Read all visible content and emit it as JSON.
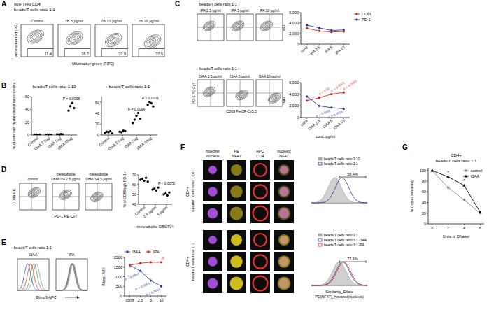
{
  "panel_labels": [
    "A",
    "B",
    "C",
    "D",
    "E",
    "F",
    "G"
  ],
  "panel_a": {
    "header": [
      "non-Treg CD4",
      "beads/T cells ratio 1:1"
    ],
    "y_label": "Mitotracker red (PE)",
    "x_label": "Mitotracker green (FITC)",
    "plots": [
      {
        "title": "Control",
        "value": 11.4
      },
      {
        "title": "7B 5 µg/ml",
        "value": 16.2
      },
      {
        "title": "7B 10 µg/ml",
        "value": 21.8
      },
      {
        "title": "7B 20 µg/ml",
        "value": 37.6
      }
    ]
  },
  "panel_c": {
    "rows": [
      {
        "header": "beads/T cells ratio 1:1",
        "plots": [
          "IPA 2.5 µg/ml",
          "IPA 5 µg/ml",
          "IPA 10 µg/ml"
        ]
      },
      {
        "header": "beads/T cells ratio 1:1",
        "plots": [
          "I3AA 2.5 µg/ml",
          "I3AA 5 µg/ml",
          "I3AA 10 µg/ml"
        ]
      }
    ],
    "y_label": "PD-1 PE-Cy7",
    "x_label": "CD69 PerCP-Cy5.5"
  },
  "panel_d": {
    "plots": [
      [
        "control"
      ],
      [
        "metetabolite",
        "D8M7V4 2.5 µg/ml"
      ],
      [
        "metetabolite",
        "D8M7V4 5 µg/ml"
      ]
    ],
    "y_label": "CD69 PE",
    "x_label": "PD-1 PE-Cy7"
  },
  "panel_e": {
    "header": "beads/T cells ratio 1:1",
    "plots": [
      "I3AA",
      "IPA"
    ],
    "x_label": "Blimp1 APC"
  },
  "panel_f": {
    "row_labels": [
      [
        "CD4+",
        "beads/T cells ratio 1:10"
      ],
      [
        "CD4+",
        "beads/T cells ratio 1:1"
      ]
    ],
    "columns": [
      [
        "hoechst",
        "nucleus"
      ],
      [
        "PE",
        "NFAT"
      ],
      [
        "APC",
        "CD4"
      ],
      [
        "nuclear/",
        "NFAT"
      ]
    ],
    "histograms": [
      {
        "legend": [
          "beads/T cells ratio 1:10",
          "beads/T cells ratio 1:1"
        ],
        "value_label": "58.4%"
      },
      {
        "legend": [
          "beads/T cells ratio 1:1",
          "beads/T cells ratio 1:1 I3AA",
          "beads/T cells ratio 1:1 IPA"
        ],
        "value_label": "77.6%"
      }
    ],
    "x_label": [
      "Similarity_Dilate",
      "PE(NFAT)_hoechst(nucleus)"
    ]
  },
  "chart_data": [
    {
      "type": "dot",
      "title": "beads/T cells ratio 1:10",
      "y_label": "% of cells with dysfunctional mitochondria",
      "categories": [
        "Control",
        "I3AA 2.5ug",
        "I3AA 5ug",
        "I3AA 10ug"
      ],
      "values": [
        [
          0.5,
          0.8,
          0.3,
          0.6
        ],
        [
          0.4,
          0.9,
          0.6,
          0.5
        ],
        [
          1.2,
          0.8,
          1.5,
          0.9
        ],
        [
          38,
          45,
          50,
          42
        ]
      ],
      "color": "#000000",
      "marker": "circle",
      "ylim": [
        0,
        60
      ],
      "yticks": [
        0,
        20,
        40,
        60
      ],
      "annotations": [
        {
          "text": "P = 0.0098",
          "category": "I3AA 10ug"
        }
      ]
    },
    {
      "type": "dot",
      "title": "beads/T cells ratio 1:1",
      "categories": [
        "Control",
        "I3AA 2.5ug",
        "I3AA 5ug",
        "I3AA 10ug"
      ],
      "values": [
        [
          4,
          6,
          5,
          7,
          3
        ],
        [
          6,
          5,
          8,
          7
        ],
        [
          22,
          28,
          35,
          40,
          30
        ],
        [
          55,
          60,
          58,
          52
        ]
      ],
      "color": "#000000",
      "marker": "circle",
      "ylim": [
        0,
        70
      ],
      "yticks": [
        0,
        20,
        40,
        60
      ],
      "annotations": [
        {
          "text": "P = 0.0094",
          "category": "I3AA 5ug"
        },
        {
          "text": "P < 0.0001",
          "category": "I3AA 10ug"
        }
      ]
    },
    {
      "type": "line",
      "y_label": "MFI",
      "categories": [
        "contr",
        "IPA 2.5",
        "IPA 5",
        "IPA 10"
      ],
      "ylim": [
        0,
        6000
      ],
      "yticks": [
        0,
        {
          "value": 2000,
          "label": "2,000"
        },
        {
          "value": 4000,
          "label": "4,000"
        },
        {
          "value": 6000,
          "label": "6,000"
        }
      ],
      "legend": "right",
      "series": [
        {
          "name": "CD69",
          "color": "#d62728",
          "marker": "circle",
          "values": [
            3000,
            2500,
            2300,
            2400
          ]
        },
        {
          "name": "PD-1",
          "color": "#2c3e9e",
          "marker": "circle",
          "values": [
            3600,
            3100,
            2600,
            2700
          ]
        }
      ]
    },
    {
      "type": "line",
      "y_label": "MFI",
      "x_label": "conc. µg/ml",
      "categories": [
        "contr",
        "I3AA 2.5",
        "I3AA 5",
        "I3AA 10"
      ],
      "ylim": [
        0,
        6000
      ],
      "yticks": [
        0,
        {
          "value": 2000,
          "label": "2,000"
        },
        {
          "value": 4000,
          "label": "4,000"
        },
        {
          "value": 6000,
          "label": "6,000"
        }
      ],
      "series": [
        {
          "name": "CD69",
          "color": "#d62728",
          "marker": "circle",
          "values": [
            2900,
            3400,
            4000,
            4300
          ]
        },
        {
          "name": "PD-1",
          "color": "#2c3e9e",
          "marker": "circle",
          "values": [
            3600,
            2000,
            1700,
            1500
          ]
        }
      ],
      "annotations": [
        {
          "text": "P = 0.01",
          "category": "I3AA 2.5",
          "series": 0
        },
        {
          "text": "P < 0.0001",
          "category": "I3AA 5",
          "series": 0
        },
        {
          "text": "P < 0.0001",
          "category": "I3AA 10",
          "series": 0
        },
        {
          "text": "P = 0.0003",
          "category": "I3AA 5",
          "series": 1
        },
        {
          "text": "P = 0.0001",
          "category": "I3AA 10",
          "series": 1
        }
      ]
    },
    {
      "type": "dot",
      "y_label": "% of CD69high PD-1+",
      "x_label": "metetabolite D8M7V4",
      "categories": [
        "Control",
        "2.5 µg/ml",
        "5 µg/ml"
      ],
      "values": [
        [
          65,
          66,
          64,
          67,
          63
        ],
        [
          55,
          56,
          54,
          57
        ],
        [
          50,
          51,
          49,
          52
        ]
      ],
      "color": "#000000",
      "marker": "circle",
      "ylim": [
        40,
        70
      ],
      "yticks": [
        40,
        50,
        60,
        70
      ],
      "annotations": [
        {
          "text": "P < 0.0076",
          "category": "5 µg/ml"
        }
      ]
    },
    {
      "type": "line",
      "y_label": "Blimp1 MFI",
      "categories": [
        "contr",
        "2.5",
        "5",
        "10"
      ],
      "ylim": [
        0,
        2000
      ],
      "yticks": [
        0,
        500,
        1000,
        1500,
        2000
      ],
      "legend": "top",
      "series": [
        {
          "name": "I3AA",
          "color": "#2c3e9e",
          "marker": "circle",
          "values": [
            1600,
            1300,
            800,
            500
          ]
        },
        {
          "name": "IPA",
          "color": "#d62728",
          "marker": "circle",
          "values": [
            1600,
            1700,
            1750,
            1750
          ]
        }
      ],
      "annotations": [
        {
          "text": "P = 0.0007",
          "category": "2.5",
          "series": 0
        },
        {
          "text": "P = 0.0001",
          "category": "5",
          "series": 0
        },
        {
          "text": "P < 0.0001",
          "category": "10",
          "series": 0
        },
        {
          "text": "ns",
          "category": "10",
          "series": 1
        }
      ]
    },
    {
      "type": "line",
      "title": "CD4+",
      "subtitle": "beads/T cells ratio 1:1",
      "y_label": "% Copies remaining",
      "x_label": "Units of DNaseI",
      "x": [
        0,
        2,
        4,
        6
      ],
      "xlim": [
        -0.5,
        6.5
      ],
      "xticks": [
        0,
        2,
        4,
        6
      ],
      "ylim": [
        0,
        105
      ],
      "yticks": [
        0,
        20,
        40,
        60,
        80,
        100
      ],
      "legend": "top-right",
      "series": [
        {
          "name": "control",
          "color": "#888888",
          "marker": "circle",
          "values": [
            100,
            68,
            45,
            20
          ]
        },
        {
          "name": "I3AA",
          "color": "#000000",
          "marker": "triangle",
          "values": [
            100,
            88,
            72,
            22
          ]
        }
      ],
      "annotations": [
        {
          "text": "*",
          "x": 2,
          "series": 1
        },
        {
          "text": "*",
          "x": 4,
          "series": 1
        }
      ]
    }
  ]
}
